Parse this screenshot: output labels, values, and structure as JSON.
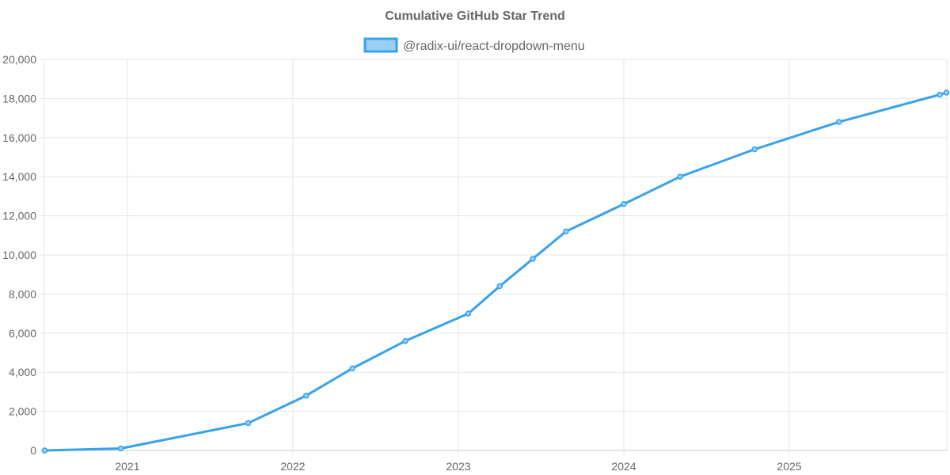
{
  "chart_data": {
    "type": "line",
    "title": "Cumulative GitHub Star Trend",
    "xlabel": "",
    "ylabel": "",
    "xlim": [
      2020.498,
      2025.952
    ],
    "ylim": [
      0,
      20000
    ],
    "grid": true,
    "legend_position": "top",
    "x_ticks": [
      2021,
      2022,
      2023,
      2024,
      2025
    ],
    "x_tick_labels": [
      "2021",
      "2022",
      "2023",
      "2024",
      "2025"
    ],
    "y_ticks": [
      0,
      2000,
      4000,
      6000,
      8000,
      10000,
      12000,
      14000,
      16000,
      18000,
      20000
    ],
    "y_tick_labels": [
      "0",
      "2,000",
      "4,000",
      "6,000",
      "8,000",
      "10,000",
      "12,000",
      "14,000",
      "16,000",
      "18,000",
      "20,000"
    ],
    "series": [
      {
        "name": "@radix-ui/react-dropdown-menu",
        "color": "#36a2eb",
        "fill": "#9ad0f5",
        "x": [
          2020.5,
          2020.96,
          2021.73,
          2022.08,
          2022.36,
          2022.68,
          2023.06,
          2023.25,
          2023.45,
          2023.65,
          2024.0,
          2024.34,
          2024.79,
          2025.3,
          2025.91,
          2025.95
        ],
        "y": [
          0,
          100,
          1400,
          2800,
          4200,
          5600,
          7000,
          8400,
          9800,
          11200,
          12600,
          14000,
          15400,
          16800,
          18200,
          18300
        ]
      }
    ]
  }
}
